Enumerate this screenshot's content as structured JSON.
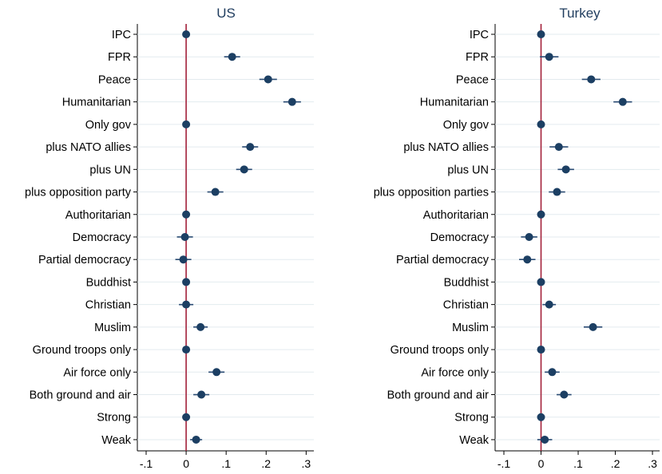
{
  "chart_data": [
    {
      "type": "coefficient-plot",
      "title": "US",
      "categories": [
        "IPC",
        "FPR",
        "Peace",
        "Humanitarian",
        "Only gov",
        "plus NATO allies",
        "plus UN",
        "plus opposition party",
        "Authoritarian",
        "Democracy",
        "Partial democracy",
        "Buddhist",
        "Christian",
        "Muslim",
        "Ground troops only",
        "Air force only",
        "Both ground and air",
        "Strong",
        "Weak"
      ],
      "x_ticks": [
        -0.1,
        0,
        0.1,
        0.2,
        0.3
      ],
      "x_tick_labels": [
        "-.1",
        "0",
        ".1",
        ".2",
        ".3"
      ],
      "xlim": [
        -0.1,
        0.31
      ],
      "reference_line": 0,
      "estimates": [
        0,
        0.115,
        0.205,
        0.265,
        0,
        0.16,
        0.145,
        0.073,
        0,
        -0.003,
        -0.007,
        0,
        0,
        0.036,
        0,
        0.076,
        0.038,
        0,
        0.025
      ],
      "ci_low": [
        0,
        0.095,
        0.183,
        0.243,
        0,
        0.14,
        0.125,
        0.053,
        0,
        -0.023,
        -0.027,
        0,
        -0.018,
        0.018,
        0,
        0.056,
        0.018,
        0,
        0.01
      ],
      "ci_high": [
        0,
        0.135,
        0.227,
        0.287,
        0,
        0.18,
        0.165,
        0.093,
        0,
        0.017,
        0.013,
        0,
        0.018,
        0.054,
        0,
        0.096,
        0.058,
        0,
        0.04
      ],
      "grid": true
    },
    {
      "type": "coefficient-plot",
      "title": "Turkey",
      "categories": [
        "IPC",
        "FPR",
        "Peace",
        "Humanitarian",
        "Only gov",
        "plus NATO allies",
        "plus UN",
        "plus opposition parties",
        "Authoritarian",
        "Democracy",
        "Partial democracy",
        "Buddhist",
        "Christian",
        "Muslim",
        "Ground troops only",
        "Air force only",
        "Both ground and air",
        "Strong",
        "Weak"
      ],
      "x_ticks": [
        -0.1,
        0,
        0.1,
        0.2,
        0.3
      ],
      "x_tick_labels": [
        "-.1",
        "0",
        ".1",
        ".2",
        ".3"
      ],
      "xlim": [
        -0.1,
        0.31
      ],
      "reference_line": 0,
      "estimates": [
        0,
        0.022,
        0.135,
        0.22,
        0,
        0.048,
        0.067,
        0.043,
        0,
        -0.032,
        -0.037,
        0,
        0.022,
        0.14,
        0,
        0.03,
        0.062,
        0,
        0.01
      ],
      "ci_low": [
        0,
        -0.003,
        0.11,
        0.195,
        0,
        0.023,
        0.045,
        0.021,
        0,
        -0.054,
        -0.059,
        0,
        0.004,
        0.115,
        0,
        0.01,
        0.042,
        0,
        -0.01
      ],
      "ci_high": [
        0,
        0.047,
        0.16,
        0.245,
        0,
        0.073,
        0.089,
        0.065,
        0,
        -0.01,
        -0.015,
        0,
        0.04,
        0.165,
        0,
        0.05,
        0.082,
        0,
        0.03
      ],
      "grid": true
    }
  ],
  "colors": {
    "point": "#1c3f63",
    "ci": "#2a4b73",
    "reference_line": "#a3213a",
    "grid": "#e3ebef",
    "title": "#1f3c5e"
  }
}
